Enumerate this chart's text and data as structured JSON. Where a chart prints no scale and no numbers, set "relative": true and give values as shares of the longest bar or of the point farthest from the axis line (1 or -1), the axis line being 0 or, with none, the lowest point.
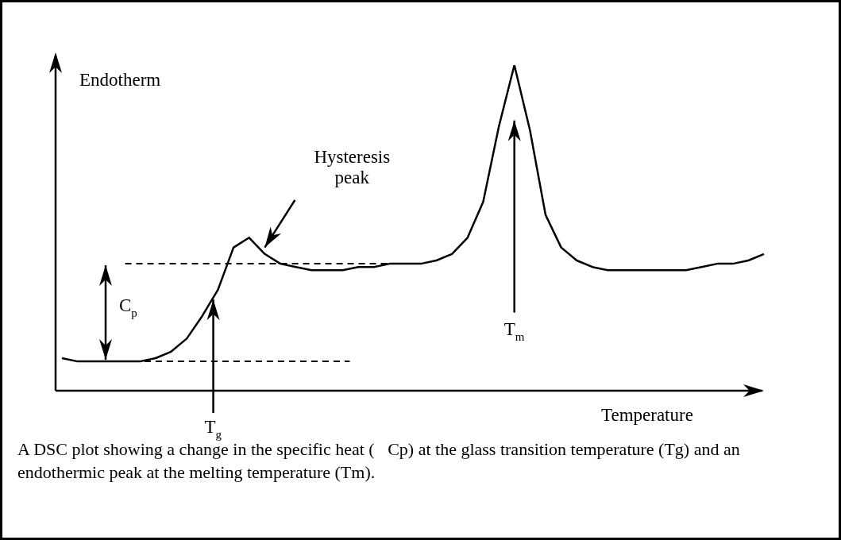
{
  "chart_data": {
    "type": "line",
    "relative": true,
    "xlabel": "Temperature",
    "ylabel": "Endotherm",
    "categories": [
      null,
      null,
      null,
      null,
      null,
      null,
      null,
      null,
      null,
      null,
      null,
      null,
      null,
      null,
      null,
      null,
      null,
      null,
      null,
      null,
      null,
      null,
      null,
      null,
      null,
      null,
      null,
      null,
      null,
      null,
      null,
      null,
      null,
      null,
      null,
      null,
      null,
      null,
      null,
      null,
      null,
      null,
      null,
      null,
      null,
      null
    ],
    "series": [
      {
        "color": "#000000",
        "values": [
          0.1,
          0.09,
          0.09,
          0.09,
          0.09,
          0.09,
          0.1,
          0.12,
          0.16,
          0.23,
          0.31,
          0.44,
          0.47,
          0.42,
          0.39,
          0.38,
          0.37,
          0.37,
          0.37,
          0.38,
          0.38,
          0.39,
          0.39,
          0.39,
          0.4,
          0.42,
          0.47,
          0.58,
          0.81,
          1,
          0.8,
          0.54,
          0.44,
          0.4,
          0.38,
          0.37,
          0.37,
          0.37,
          0.37,
          0.37,
          0.37,
          0.38,
          0.39,
          0.39,
          0.4,
          0.42
        ]
      }
    ],
    "marker": "none",
    "line_style": "solid",
    "legend": false,
    "ref_lines": [
      {
        "axis": "y",
        "value": 0.39,
        "line_style": "dashed",
        "color": "#000000"
      },
      {
        "axis": "y",
        "value": 0.09,
        "line_style": "dashed",
        "color": "#000000"
      }
    ],
    "annotations": [
      "Hysteresis peak",
      "C$_{p}$",
      "T$_{g}$",
      "T$_{m}$",
      "A DSC plot showing a change in the specific heat (   Cp) at the glass transition temperature (Tg) and an endothermic peak at the melting temperature (Tm)."
    ]
  }
}
